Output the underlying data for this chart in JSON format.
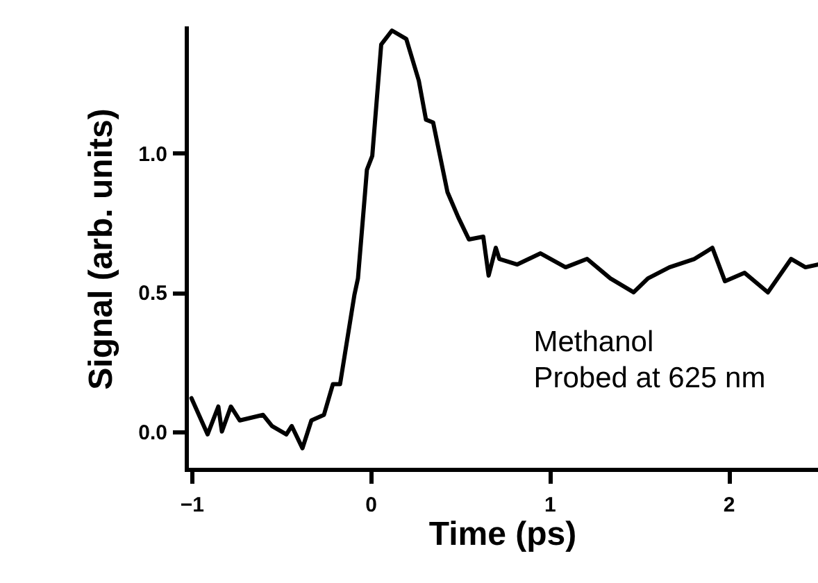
{
  "chart_data": {
    "type": "line",
    "xlabel": "Time (ps)",
    "ylabel": "Signal (arb. units)",
    "annotations": [
      "Methanol",
      "Probed at 625 nm"
    ],
    "xlim": [
      -1.03,
      2.5
    ],
    "xticks": [
      -1,
      0,
      1,
      2
    ],
    "ylim": [
      -0.135,
      1.45
    ],
    "yticks": [
      {
        "value": 0,
        "label": "0.0"
      },
      0.5,
      {
        "value": 1,
        "label": "1.0"
      }
    ],
    "grid": false,
    "marker": "none",
    "line_style": "solid",
    "series": [
      {
        "color": "#000000",
        "x": [
          -1.0,
          -0.91,
          -0.85,
          -0.83,
          -0.78,
          -0.73,
          -0.6,
          -0.55,
          -0.47,
          -0.44,
          -0.38,
          -0.33,
          -0.26,
          -0.21,
          -0.17,
          -0.09,
          -0.07,
          -0.03,
          -0.02,
          0.01,
          0.06,
          0.12,
          0.2,
          0.27,
          0.31,
          0.35,
          0.43,
          0.49,
          0.55,
          0.63,
          0.66,
          0.7,
          0.72,
          0.82,
          0.95,
          1.09,
          1.21,
          1.34,
          1.47,
          1.55,
          1.67,
          1.81,
          1.91,
          1.98,
          2.09,
          2.22,
          2.35,
          2.43,
          2.5
        ],
        "values": [
          0.12,
          -0.01,
          0.09,
          0.0,
          0.09,
          0.04,
          0.06,
          0.02,
          -0.01,
          0.02,
          -0.06,
          0.04,
          0.06,
          0.17,
          0.17,
          0.49,
          0.55,
          0.86,
          0.94,
          0.99,
          1.39,
          1.44,
          1.41,
          1.26,
          1.12,
          1.11,
          0.86,
          0.77,
          0.69,
          0.7,
          0.56,
          0.66,
          0.62,
          0.6,
          0.64,
          0.59,
          0.62,
          0.55,
          0.5,
          0.55,
          0.59,
          0.62,
          0.66,
          0.54,
          0.57,
          0.5,
          0.62,
          0.59,
          0.6
        ]
      }
    ]
  }
}
